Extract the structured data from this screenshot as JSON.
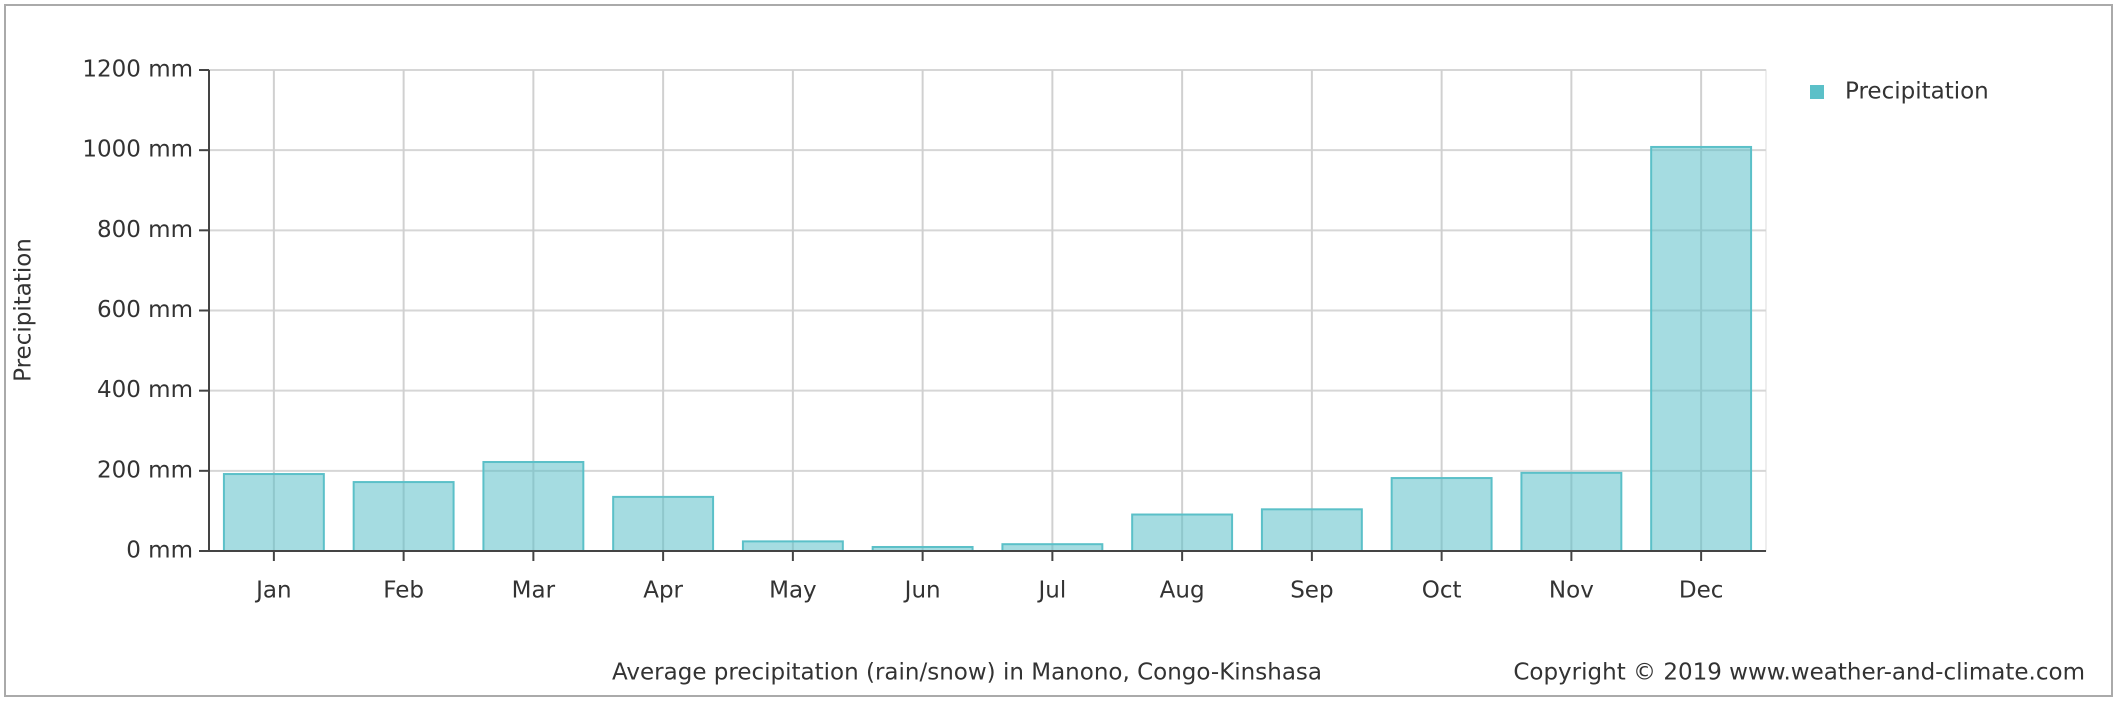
{
  "chart_data": {
    "type": "bar",
    "y_label": "Precipitation",
    "categories": [
      "Jan",
      "Feb",
      "Mar",
      "Apr",
      "May",
      "Jun",
      "Jul",
      "Aug",
      "Sep",
      "Oct",
      "Nov",
      "Dec"
    ],
    "series": [
      {
        "name": "Precipitation",
        "color": "#5bc0c8",
        "values": [
          192,
          172,
          222,
          135,
          24,
          10,
          17,
          91,
          104,
          182,
          195,
          1008
        ]
      }
    ],
    "ylim": [
      0,
      1200
    ],
    "yticks": [
      {
        "value": 0,
        "label": "0 mm"
      },
      {
        "value": 200,
        "label": "200 mm"
      },
      {
        "value": 400,
        "label": "400 mm"
      },
      {
        "value": 600,
        "label": "600 mm"
      },
      {
        "value": 800,
        "label": "800 mm"
      },
      {
        "value": 1000,
        "label": "1000 mm"
      },
      {
        "value": 1200,
        "label": "1200 mm"
      }
    ],
    "grid": true,
    "legend": "top-right",
    "caption": "Average precipitation (rain/snow) in Manono, Congo-Kinshasa",
    "copyright": "Copyright © 2019 www.weather-and-climate.com"
  }
}
